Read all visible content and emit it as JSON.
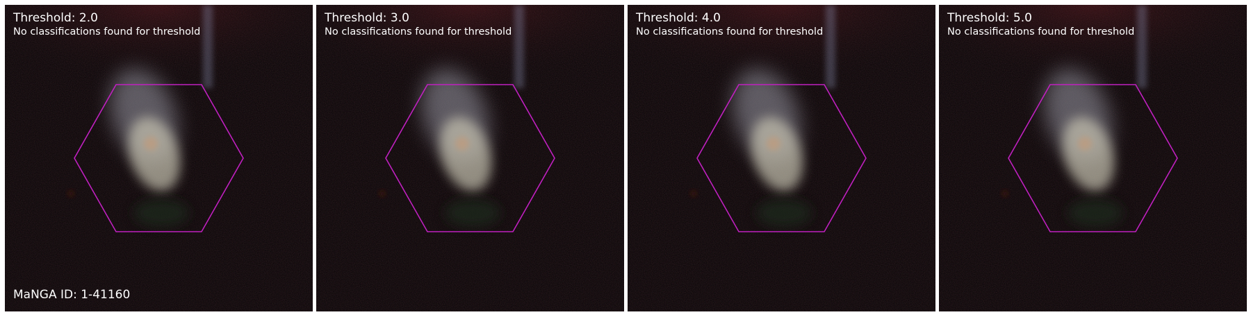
{
  "panels": [
    {
      "threshold_label": "Threshold: 2.0",
      "status": "No classifications found for threshold"
    },
    {
      "threshold_label": "Threshold: 3.0",
      "status": "No classifications found for threshold"
    },
    {
      "threshold_label": "Threshold: 4.0",
      "status": "No classifications found for threshold"
    },
    {
      "threshold_label": "Threshold: 5.0",
      "status": "No classifications found for threshold"
    }
  ],
  "manga_id": "MaNGA ID: 1-41160",
  "colors": {
    "hexagon": "#c020c0",
    "text": "#ffffff",
    "background": "#060304"
  },
  "icons": {
    "overlay": "hexagon-ifu-footprint"
  }
}
